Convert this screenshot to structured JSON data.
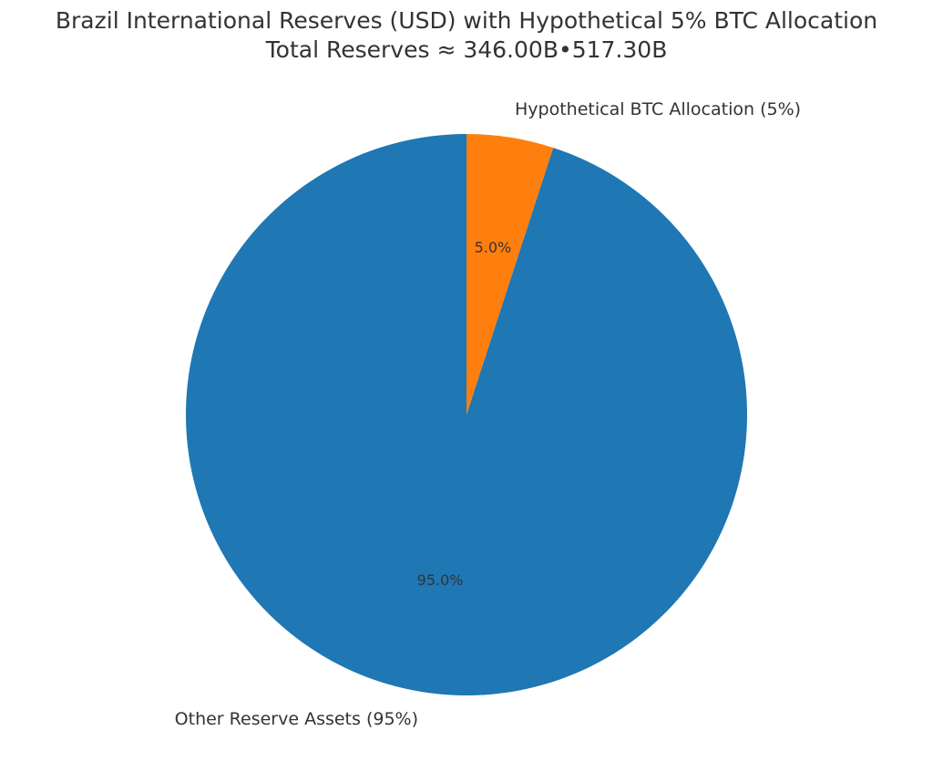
{
  "chart_data": {
    "type": "pie",
    "title": "Brazil International Reserves (USD) with Hypothetical 5% BTC Allocation",
    "subtitle": "Total Reserves ≈ 346.00B•517.30B",
    "categories": [
      "Other Reserve Assets (95%)",
      "Hypothetical BTC Allocation (5%)"
    ],
    "values": [
      95,
      5
    ],
    "value_labels": [
      "95.0%",
      "5.0%"
    ],
    "colors": [
      "#1f77b4",
      "#ff7f0e"
    ]
  }
}
